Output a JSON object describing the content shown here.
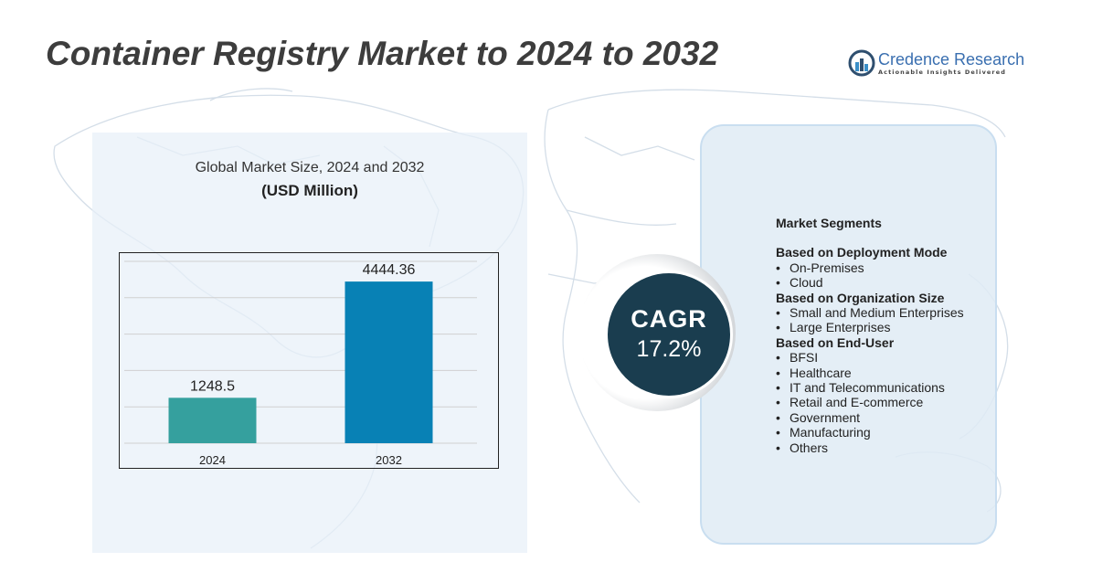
{
  "title": "Container Registry Market to 2024 to 2032",
  "logo": {
    "name": "Credence Research",
    "tagline": "Actionable Insights Delivered",
    "icon": "credence-logo-icon",
    "color": "#3a6fb0"
  },
  "chart_data": {
    "type": "bar",
    "title": "Global Market Size,  2024 and 2032",
    "subtitle": "(USD Million)",
    "categories": [
      "2024",
      "2032"
    ],
    "values": [
      1248.5,
      4444.36
    ],
    "value_labels": [
      "1248.5",
      "4444.36"
    ],
    "colors": [
      "#35a09e",
      "#0881b5"
    ],
    "ylim": [
      0,
      5000
    ],
    "grid": true,
    "xlabel": "",
    "ylabel": ""
  },
  "cagr": {
    "label": "CAGR",
    "value": "17.2%"
  },
  "segments": {
    "heading": "Market Segments",
    "groups": [
      {
        "title": "Based on Deployment Mode",
        "items": [
          "On-Premises",
          "Cloud"
        ]
      },
      {
        "title": "Based on Organization Size",
        "items": [
          "Small and Medium Enterprises",
          "Large Enterprises"
        ]
      },
      {
        "title": "Based on End-User",
        "items": [
          "BFSI",
          "Healthcare",
          "IT and Telecommunications",
          "Retail and E-commerce",
          "Government",
          "Manufacturing",
          "Others"
        ]
      }
    ]
  },
  "colors": {
    "title": "#3d3d3d",
    "cagr_bg": "#1a3d4f",
    "panel_bg": "#e7f0f8"
  }
}
